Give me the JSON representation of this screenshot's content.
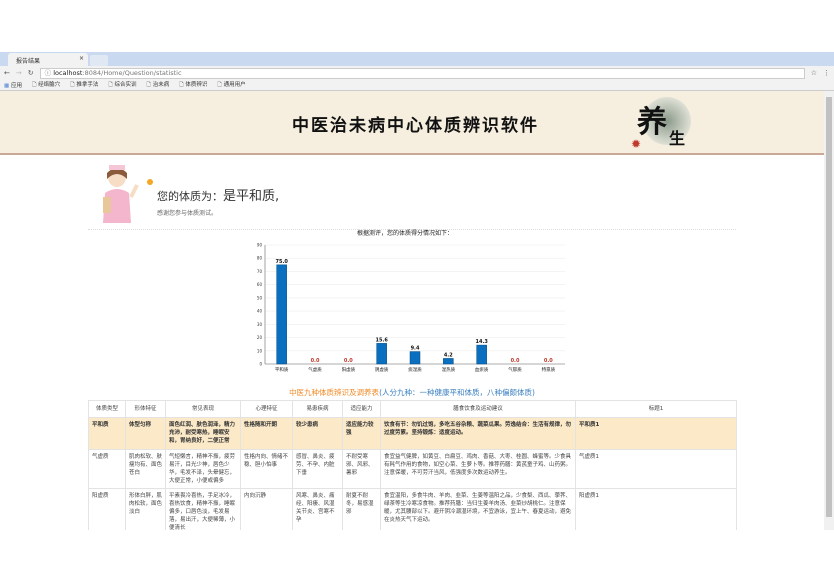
{
  "browser": {
    "tab_title": "报告结果",
    "tab_close": "×",
    "url_host": "localhost",
    "url_path": ":8084/Home/Question/statistic",
    "bookmarks": [
      "应用",
      "经络腧穴",
      "推拿手法",
      "综合实训",
      "治未病",
      "体质辨识",
      "通用用户"
    ]
  },
  "header": {
    "title": "中医治未病中心体质辨识软件",
    "logo_text": "养生"
  },
  "greeting": {
    "label": "您的体质为：",
    "result": "是平和质,",
    "subtitle": "感谢您参与体质测试。"
  },
  "chart_data": {
    "type": "bar",
    "title": "根据测评，您的体质得分情况如下：",
    "categories": [
      "平和质",
      "气虚质",
      "阳虚质",
      "阴虚质",
      "痰湿质",
      "湿热质",
      "血瘀质",
      "气郁质",
      "特禀质"
    ],
    "values": [
      75.0,
      0.0,
      0.0,
      15.6,
      9.4,
      4.2,
      14.3,
      0.0,
      0.0
    ],
    "ylim": [
      0,
      90
    ],
    "yticks": [
      0,
      10,
      20,
      30,
      40,
      50,
      60,
      70,
      80,
      90
    ],
    "grid": true,
    "bar_color": "#0a6fbf",
    "zero_label_color": "#c0392b"
  },
  "table": {
    "title_orange": "中医九种体质辨识及调养表",
    "title_blue": "(人分九种：一种健康平和体质，八种偏颇体质)",
    "headers": [
      "体质类型",
      "形体特征",
      "常见表现",
      "心理特征",
      "易患疾病",
      "适应能力",
      "膳食饮食及运动建议",
      "标题1"
    ],
    "rows": [
      [
        "平和质",
        "体型匀称",
        "面色红润、肤色润泽，精力充沛，耐受寒热，睡眠安和，胃纳良好，二便正常",
        "性格随和开朗",
        "较少患病",
        "适应能力较强",
        "饮食有节：勿饥过饱，多吃五谷杂粮、蔬菜瓜果。劳逸结合：生活有规律，勿过度劳累。坚持锻炼：适度运动。",
        "平和质1"
      ],
      [
        "气虚质",
        "肌肉松软、肤瘦均有、面色苍白",
        "气短懒言，精神不振，疲劳易汗，目光少神，唇色少华，毛发不泽，头晕健忘，大便正常，小便或偏多",
        "性格内向、情绪不稳、胆小怕事",
        "感冒、鼻炎、疲劳、不孕、内脏下垂",
        "不耐受寒邪、风邪、暑邪",
        "食宜益气健脾，如黄豆、白扁豆、鸡肉、香菇、大枣、桂圆、蜂蜜等。少食具有耗气作用的食物，如空心菜、生萝卜等。推荐药膳：黄芪童子鸡、山药粥。注意保暖，不可劳汗当风，低强度多次数运动养生。",
        "气虚质1"
      ],
      [
        "阳虚质",
        "形体白胖，肌肉松软，面色淡白",
        "平素畏冷喜热，手足冰冷，喜热饮食，精神不振，睡眠偏多，口唇色淡，毛发易落，易出汗，大便稀薄，小便清长",
        "内向沉静",
        "风寒、鼻炎、痛经、阳痿、风湿关节炎、宫寒不孕",
        "耐夏不耐冬，易感湿邪",
        "食宜温阳，多食牛肉、羊肉、韭菜、生姜等温阳之品，少食梨、西瓜、荸荠、绿茶等生冷寒凉食物。推荐药膳：当归生姜羊肉汤、韭菜炒胡桃仁。注意保暖，尤其腰部以下。避开阴冷潮湿环境，不宜游泳，宜上午、春夏运动，避免在炎热天气下运动。",
        "阳虚质1"
      ]
    ]
  }
}
